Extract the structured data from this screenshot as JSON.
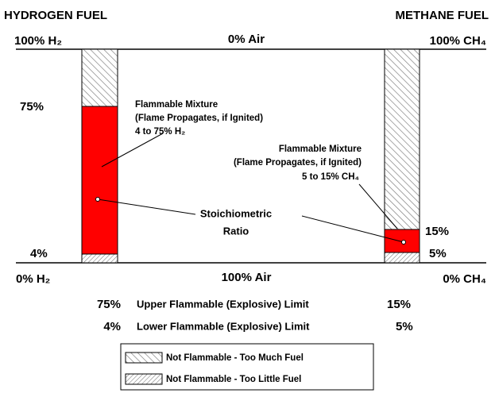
{
  "header": {
    "left": "HYDROGEN FUEL",
    "right": "METHANE FUEL"
  },
  "top": {
    "left": "100% H₂",
    "center": "0% Air",
    "right": "100% CH₄"
  },
  "bottom": {
    "left": "0% H₂",
    "center": "100% Air",
    "right": "0% CH₄"
  },
  "hydrogen": {
    "upper": "75%",
    "lower": "4%",
    "note": [
      "Flammable Mixture",
      "(Flame Propagates, if Ignited)",
      "4 to 75% H₂"
    ]
  },
  "methane": {
    "upper": "15%",
    "lower": "5%",
    "note": [
      "Flammable Mixture",
      "(Flame Propagates, if Ignited)",
      "5 to 15% CH₄"
    ]
  },
  "stoichiometric": [
    "Stoichiometric",
    "Ratio"
  ],
  "limits": [
    {
      "hydrogen": "75%",
      "label": "Upper Flammable (Explosive) Limit",
      "methane": "15%"
    },
    {
      "hydrogen": "4%",
      "label": "Lower Flammable (Explosive) Limit",
      "methane": "5%"
    }
  ],
  "legend": [
    "Not Flammable - Too Much Fuel",
    "Not Flammable - Too Little Fuel"
  ]
}
